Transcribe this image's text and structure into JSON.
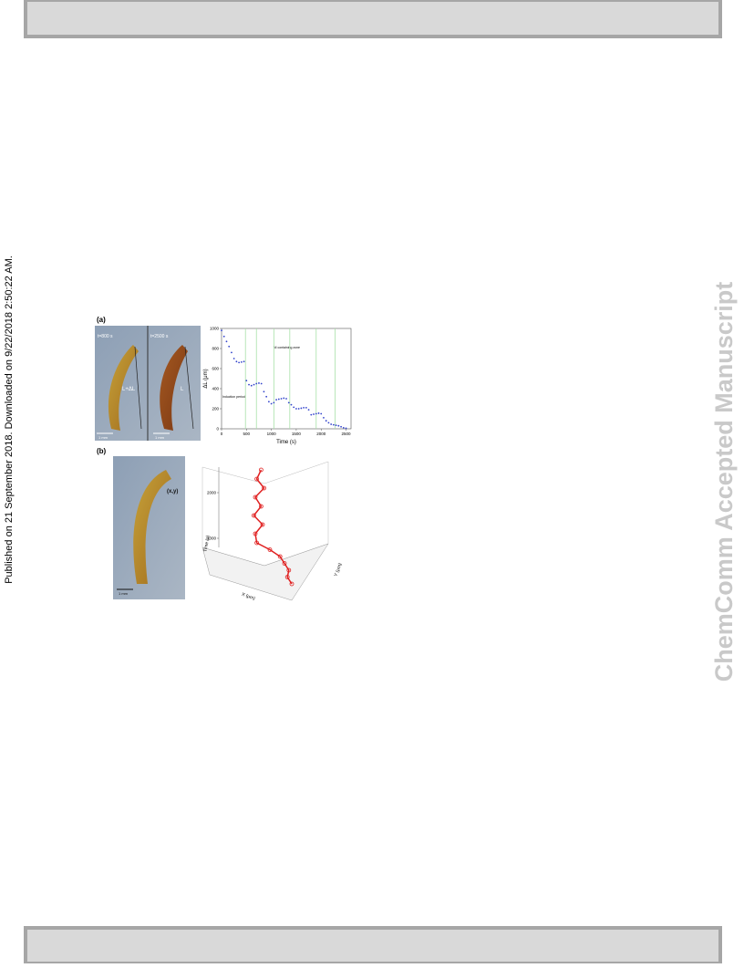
{
  "side_note": "Published on 21 September 2018. Downloaded on 9/22/2018 2:50:22 AM.",
  "watermark": "ChemComm Accepted Manuscript",
  "figure": {
    "panel_a": {
      "label": "(a)",
      "photo_left": {
        "time_label": "t=800 s",
        "length_label": "L+ΔL",
        "scale_label": "1 mm"
      },
      "photo_right": {
        "time_label": "t=2500 s",
        "length_label": "L",
        "scale_label": "1 mm"
      },
      "chart": {
        "type": "scatter",
        "x_label": "Time (s)",
        "y_label": "ΔL (μm)",
        "x": [
          0,
          50,
          100,
          150,
          200,
          250,
          300,
          350,
          400,
          450,
          500,
          550,
          600,
          650,
          700,
          750,
          800,
          850,
          900,
          950,
          1000,
          1050,
          1100,
          1150,
          1200,
          1250,
          1300,
          1350,
          1400,
          1450,
          1500,
          1550,
          1600,
          1650,
          1700,
          1750,
          1800,
          1850,
          1900,
          1950,
          2000,
          2050,
          2100,
          2150,
          2200,
          2250,
          2300,
          2350,
          2400,
          2450,
          2500
        ],
        "values": [
          980,
          920,
          870,
          820,
          760,
          700,
          670,
          660,
          665,
          670,
          480,
          440,
          430,
          440,
          450,
          455,
          450,
          370,
          320,
          270,
          250,
          260,
          290,
          295,
          300,
          305,
          300,
          260,
          240,
          215,
          200,
          200,
          205,
          210,
          210,
          190,
          140,
          145,
          150,
          155,
          150,
          110,
          80,
          60,
          45,
          40,
          35,
          30,
          20,
          10,
          5
        ],
        "color": "#3344cc",
        "xlim": [
          0,
          2600
        ],
        "ylim": [
          0,
          1000
        ],
        "xticks": [
          0,
          500,
          1000,
          1500,
          2000,
          2500
        ],
        "yticks": [
          0,
          200,
          400,
          600,
          800,
          1000
        ],
        "marker_lines": [
          480,
          700,
          1050,
          1370,
          1900,
          2280
        ],
        "marker_color": "#a8e0a8",
        "annotations": [
          "Induction period",
          "NI containing zone"
        ]
      }
    },
    "panel_b": {
      "label": "(b)",
      "photo": {
        "point_label": "(x,y)",
        "scale_label": "1 mm"
      },
      "plot3d": {
        "z_label": "Time (s)",
        "x_label": "X (μm)",
        "y_label": "Y (μm)",
        "zticks": [
          1000,
          2000
        ],
        "zlim": [
          0,
          2600
        ],
        "time": [
          0,
          150,
          300,
          450,
          600,
          750,
          900,
          1100,
          1300,
          1500,
          1700,
          1900,
          2100,
          2300,
          2500
        ],
        "x": [
          3200,
          3170,
          3180,
          3150,
          3120,
          3050,
          2960,
          2950,
          3000,
          2940,
          2990,
          2950,
          3010,
          2960,
          2990
        ],
        "xlim": [
          2700,
          3300
        ],
        "color": "#e02020"
      }
    }
  }
}
